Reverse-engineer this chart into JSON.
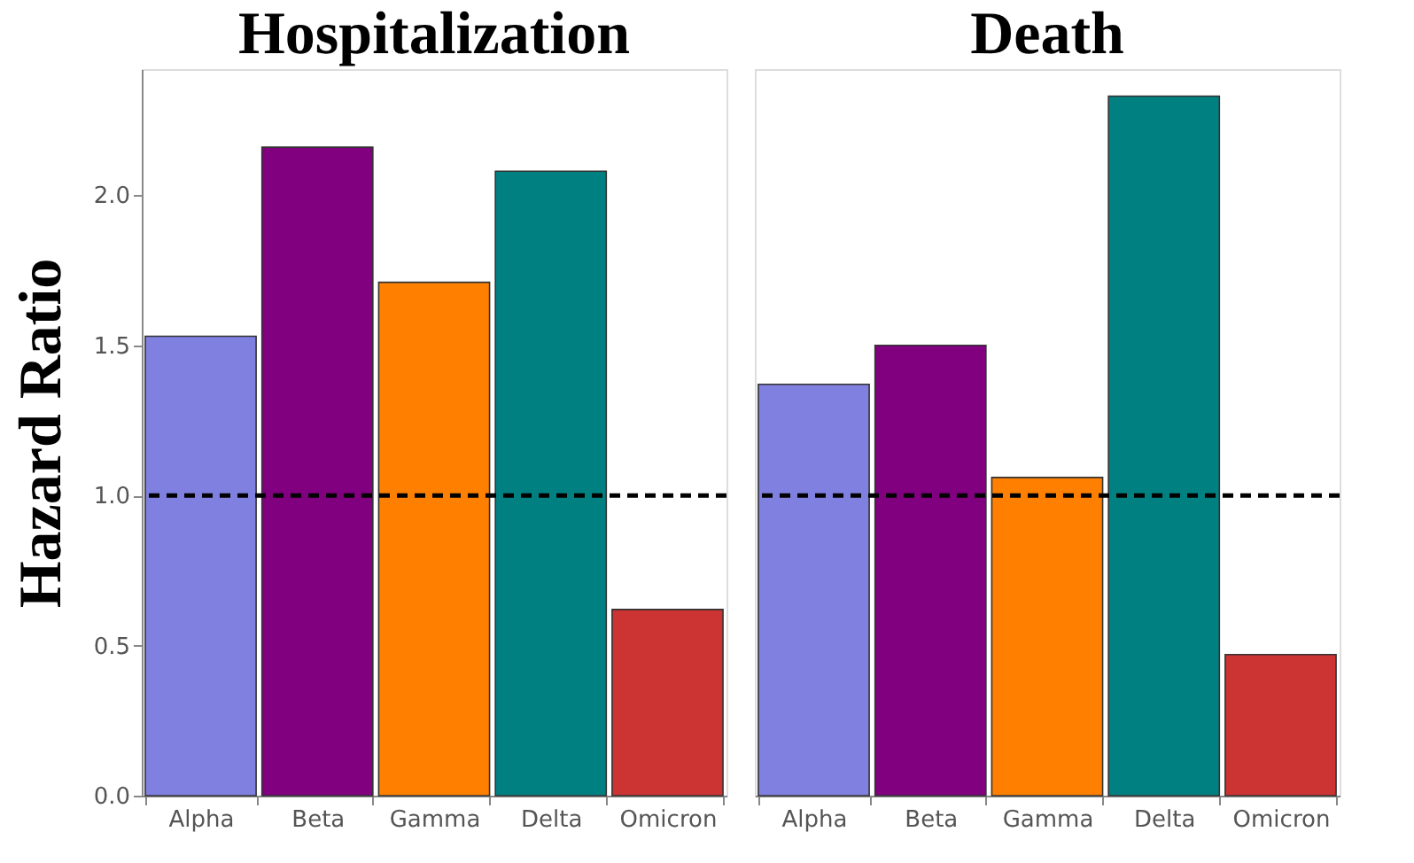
{
  "chart_data": [
    {
      "type": "bar",
      "title": "Hospitalization",
      "ylabel": "Hazard Ratio",
      "categories": [
        "Alpha",
        "Beta",
        "Gamma",
        "Delta",
        "Omicron"
      ],
      "values": [
        1.53,
        2.16,
        1.71,
        2.08,
        0.62
      ],
      "colors": [
        "#8080e0",
        "#800080",
        "#ff8000",
        "#008080",
        "#cc3333"
      ],
      "ylim": [
        0,
        2.42
      ],
      "yticks": [
        {
          "value": 0,
          "label": "0.0"
        },
        0.5,
        {
          "value": 1,
          "label": "1.0"
        },
        1.5,
        {
          "value": 2,
          "label": "2.0"
        }
      ],
      "ref_lines": [
        {
          "axis": "y",
          "value": 1,
          "color": "#000000",
          "line_style": "dashed"
        }
      ],
      "grid": false
    },
    {
      "type": "bar",
      "title": "Death",
      "categories": [
        "Alpha",
        "Beta",
        "Gamma",
        "Delta",
        "Omicron"
      ],
      "values": [
        1.37,
        1.5,
        1.06,
        2.33,
        0.47
      ],
      "colors": [
        "#8080e0",
        "#800080",
        "#ff8000",
        "#008080",
        "#cc3333"
      ],
      "ylim": [
        0,
        2.42
      ],
      "tick_labels": "x",
      "ref_lines": [
        {
          "axis": "y",
          "value": 1,
          "color": "#000000",
          "line_style": "dashed"
        }
      ],
      "grid": false
    }
  ]
}
